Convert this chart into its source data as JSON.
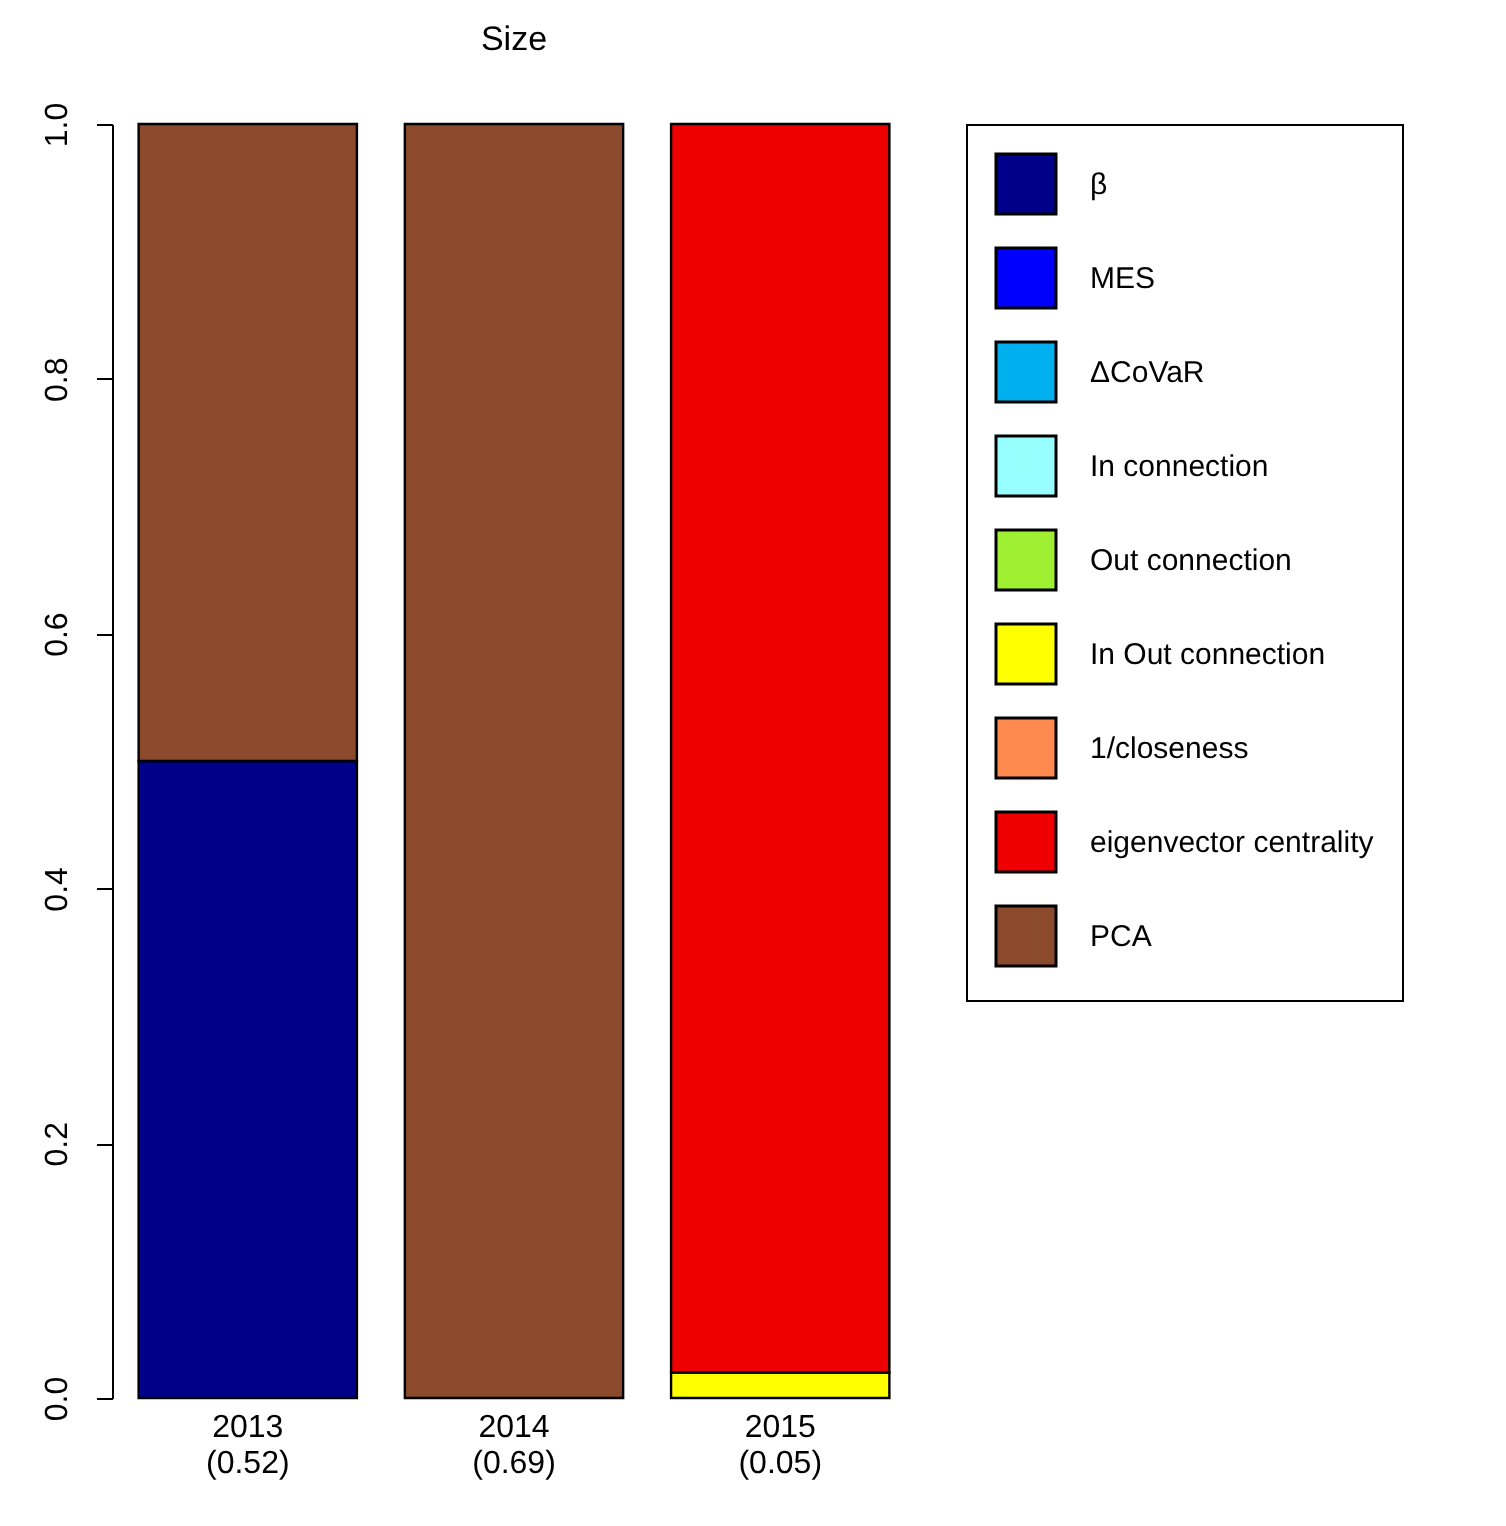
{
  "chart_data": {
    "type": "bar",
    "title": "Size",
    "stacked": true,
    "categories": [
      "2013\n(0.52)",
      "2014\n(0.69)",
      "2015\n(0.05)"
    ],
    "series": [
      {
        "name": "β",
        "color": "#00008b",
        "values": [
          0.5,
          0,
          0
        ]
      },
      {
        "name": "MES",
        "color": "#0000ff",
        "values": [
          0,
          0,
          0
        ]
      },
      {
        "name": "ΔCoVaR",
        "color": "#00b0ee",
        "values": [
          0,
          0,
          0
        ]
      },
      {
        "name": "In connection",
        "color": "#98ffff",
        "values": [
          0,
          0,
          0
        ]
      },
      {
        "name": "Out connection",
        "color": "#9ff032",
        "values": [
          0,
          0,
          0
        ]
      },
      {
        "name": "In Out connection",
        "color": "#ffff00",
        "values": [
          0,
          0,
          0.02
        ]
      },
      {
        "name": "1/closeness",
        "color": "#ff8a50",
        "values": [
          0,
          0,
          0
        ]
      },
      {
        "name": "eigenvector centrality",
        "color": "#ee0000",
        "values": [
          0,
          0,
          0.98
        ]
      },
      {
        "name": "PCA",
        "color": "#8b4a2b",
        "values": [
          0.5,
          1,
          0
        ]
      }
    ],
    "ylim": [
      0,
      1
    ],
    "yticks": [
      {
        "value": 0,
        "label": "0.0"
      },
      0.2,
      0.4,
      0.6,
      0.8,
      {
        "value": 1,
        "label": "1.0"
      }
    ],
    "grid": false,
    "legend": "top right"
  }
}
